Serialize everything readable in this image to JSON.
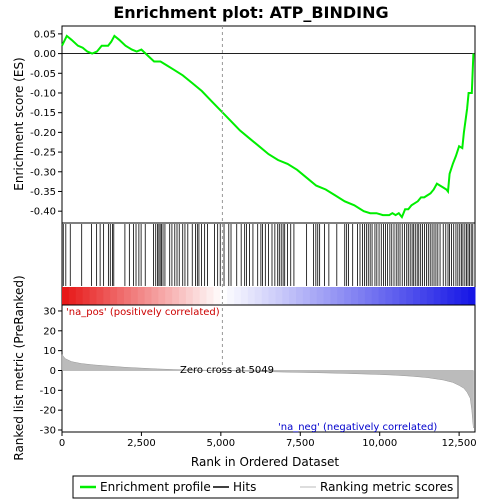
{
  "chart_data": {
    "type": "line",
    "title": "Enrichment plot: ATP_BINDING",
    "top_panel": {
      "ylabel": "Enrichment score (ES)",
      "ylim": [
        -0.43,
        0.07
      ],
      "yticks": [
        0.05,
        0.0,
        -0.05,
        -0.1,
        -0.15,
        -0.2,
        -0.25,
        -0.3,
        -0.35,
        -0.4
      ],
      "ytick_labels": [
        "0.05",
        "0.00",
        "-0.05",
        "-0.10",
        "-0.15",
        "-0.20",
        "-0.25",
        "-0.30",
        "-0.35",
        "-0.40"
      ],
      "series": [
        {
          "name": "Enrichment profile",
          "color": "#00ee00",
          "x": [
            0,
            60,
            150,
            300,
            500,
            650,
            800,
            950,
            1100,
            1250,
            1350,
            1450,
            1550,
            1650,
            1800,
            2000,
            2200,
            2350,
            2500,
            2700,
            2900,
            3100,
            3300,
            3500,
            3800,
            4100,
            4400,
            4700,
            5000,
            5300,
            5600,
            5900,
            6200,
            6500,
            6800,
            7100,
            7400,
            7700,
            8000,
            8300,
            8600,
            8900,
            9200,
            9500,
            9700,
            9900,
            10100,
            10300,
            10400,
            10500,
            10600,
            10700,
            10750,
            10800,
            10900,
            11000,
            11100,
            11200,
            11300,
            11400,
            11500,
            11600,
            11700,
            11800,
            11900,
            12000,
            12100,
            12150,
            12200,
            12300,
            12400,
            12500,
            12600,
            12650,
            12700,
            12750,
            12800,
            12850,
            12900,
            12950
          ],
          "y": [
            0.02,
            0.03,
            0.045,
            0.035,
            0.02,
            0.015,
            0.005,
            0.0,
            0.005,
            0.02,
            0.02,
            0.02,
            0.03,
            0.045,
            0.035,
            0.02,
            0.01,
            0.005,
            0.01,
            -0.005,
            -0.02,
            -0.02,
            -0.03,
            -0.04,
            -0.055,
            -0.075,
            -0.095,
            -0.12,
            -0.145,
            -0.17,
            -0.195,
            -0.215,
            -0.235,
            -0.255,
            -0.27,
            -0.28,
            -0.295,
            -0.315,
            -0.335,
            -0.345,
            -0.36,
            -0.375,
            -0.385,
            -0.4,
            -0.405,
            -0.405,
            -0.41,
            -0.41,
            -0.405,
            -0.41,
            -0.405,
            -0.415,
            -0.405,
            -0.395,
            -0.395,
            -0.385,
            -0.38,
            -0.375,
            -0.365,
            -0.365,
            -0.36,
            -0.355,
            -0.345,
            -0.33,
            -0.335,
            -0.34,
            -0.345,
            -0.35,
            -0.305,
            -0.28,
            -0.26,
            -0.235,
            -0.24,
            -0.2,
            -0.17,
            -0.14,
            -0.1,
            -0.1,
            -0.1,
            0.0
          ]
        }
      ]
    },
    "hits_panel": {
      "hit_positions": [
        40,
        120,
        260,
        620,
        930,
        1090,
        1200,
        1310,
        1460,
        1520,
        1590,
        1630,
        1980,
        2120,
        2250,
        2330,
        2420,
        2490,
        2620,
        2880,
        2950,
        3010,
        3050,
        3090,
        3130,
        3180,
        3240,
        3390,
        3460,
        3550,
        3620,
        3690,
        3800,
        3870,
        3960,
        4100,
        4200,
        4260,
        4310,
        4390,
        4490,
        4580,
        4800,
        4900,
        4980,
        5100,
        5250,
        5320,
        5500,
        5640,
        5750,
        5810,
        5900,
        6010,
        6160,
        6260,
        6310,
        6400,
        6500,
        6610,
        6700,
        6790,
        6840,
        6900,
        6960,
        7010,
        7100,
        7200,
        7300,
        7700,
        7920,
        7990,
        8050,
        8110,
        8260,
        8400,
        8650,
        8900,
        8960,
        9020,
        9150,
        9300,
        9380,
        9460,
        9520,
        9580,
        9640,
        9700,
        9760,
        9850,
        9910,
        9980,
        10050,
        10120,
        10180,
        10250,
        10320,
        10380,
        10450,
        10520,
        10580,
        10640,
        10710,
        10780,
        10850,
        10900,
        10960,
        11020,
        11070,
        11120,
        11180,
        11230,
        11290,
        11350,
        11410,
        11470,
        11530,
        11590,
        11650,
        11710,
        11770,
        11830,
        11900,
        12000,
        12080,
        12150,
        12200,
        12260,
        12330,
        12400,
        12460,
        12520,
        12570,
        12620,
        12680,
        12730,
        12780,
        12830,
        12880,
        12930
      ]
    },
    "metric_panel": {
      "ylabel": "Ranked list metric (PreRanked)",
      "xlabel": "Rank in Ordered Dataset",
      "ylim": [
        -31,
        33
      ],
      "yticks": [
        30,
        20,
        10,
        0,
        -10,
        -20,
        -30
      ],
      "ytick_labels": [
        "30",
        "20",
        "10",
        "0",
        "-10",
        "-20",
        "-30"
      ],
      "xlim": [
        0,
        13000
      ],
      "xticks": [
        0,
        2500,
        5000,
        7500,
        10000,
        12500
      ],
      "xtick_labels": [
        "0",
        "2,500",
        "5,000",
        "7,500",
        "10,000",
        "12,500"
      ],
      "x": [
        0,
        100,
        300,
        600,
        1000,
        1500,
        2000,
        2500,
        3000,
        3500,
        4000,
        4500,
        5049,
        5500,
        6000,
        7000,
        8000,
        9000,
        10000,
        10500,
        11000,
        11500,
        12000,
        12300,
        12500,
        12650,
        12750,
        12850,
        12900,
        12930,
        12950
      ],
      "y": [
        8,
        6,
        4.5,
        3.5,
        2.8,
        2.2,
        1.6,
        1.2,
        0.8,
        0.5,
        0.3,
        0.15,
        0,
        -0.2,
        -0.4,
        -0.8,
        -1.1,
        -1.5,
        -2.0,
        -2.4,
        -2.9,
        -3.6,
        -4.8,
        -6.0,
        -7.5,
        -9.0,
        -11.0,
        -14.0,
        -20.0,
        -26.0,
        -29.0
      ],
      "zero_cross_label": "Zero cross at 5049",
      "pos_label": "'na_pos' (positively correlated)",
      "neg_label": "'na_neg' (negatively correlated)"
    },
    "legend": [
      {
        "label": "Enrichment profile",
        "color": "#00ee00"
      },
      {
        "label": "Hits",
        "color": "#000000"
      },
      {
        "label": "Ranking metric scores",
        "color": "#bbbbbb"
      }
    ]
  }
}
